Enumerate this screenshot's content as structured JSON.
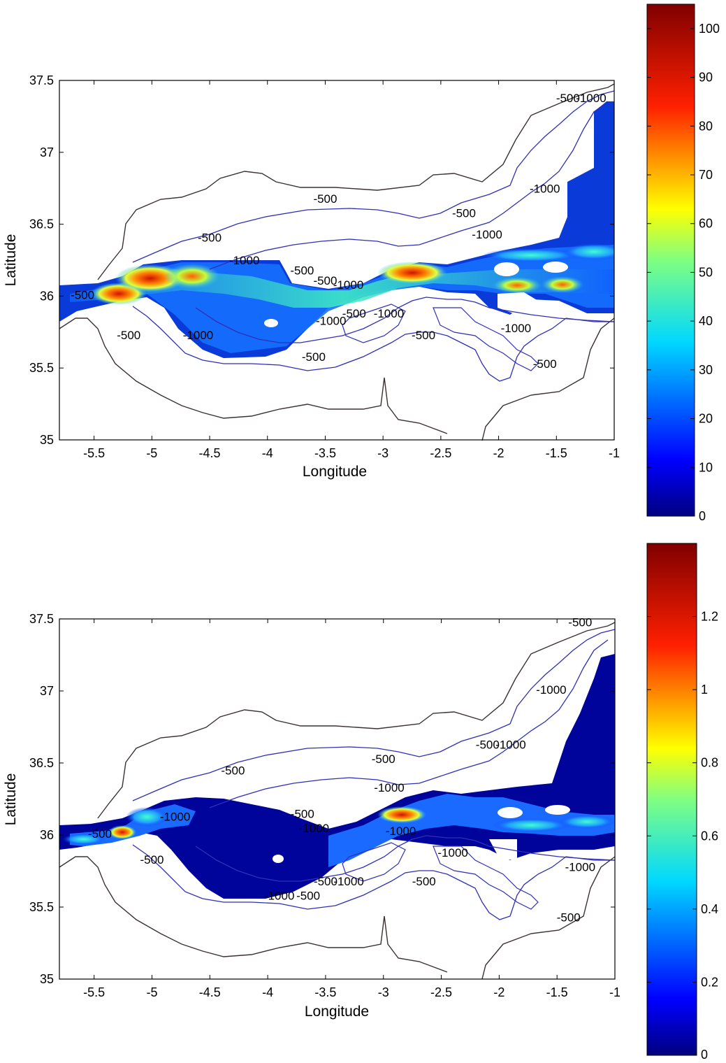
{
  "chart_data": [
    {
      "type": "heatmap",
      "xlabel": "Longitude",
      "ylabel": "Latitude",
      "xlim": [
        -5.8,
        -1
      ],
      "ylim": [
        35,
        37.5
      ],
      "xticks": [
        "-5.5",
        "-5",
        "-4.5",
        "-4",
        "-3.5",
        "-3",
        "-2.5",
        "-2",
        "-1.5",
        "-1"
      ],
      "yticks": [
        "35",
        "35.5",
        "36",
        "36.5",
        "37",
        "37.5"
      ],
      "colorbar": {
        "range": [
          0,
          105
        ],
        "ticks": [
          "0",
          "10",
          "20",
          "30",
          "40",
          "50",
          "60",
          "70",
          "80",
          "90",
          "100"
        ]
      },
      "contour_levels": [
        -500,
        -1000
      ],
      "contour_labels": [
        {
          "text": "-500",
          "x": -4.5,
          "y": 36.38
        },
        {
          "text": "-1000",
          "x": -4.2,
          "y": 36.22
        },
        {
          "text": "-500",
          "x": -3.7,
          "y": 36.15
        },
        {
          "text": "-500",
          "x": -3.5,
          "y": 36.08
        },
        {
          "text": "-1000",
          "x": -3.3,
          "y": 36.05
        },
        {
          "text": "-500",
          "x": -2.3,
          "y": 36.55
        },
        {
          "text": "-1000",
          "x": -2.1,
          "y": 36.4
        },
        {
          "text": "-500",
          "x": -3.5,
          "y": 36.65
        },
        {
          "text": "-1000",
          "x": -1.6,
          "y": 36.72
        },
        {
          "text": "-500",
          "x": -1.4,
          "y": 37.35
        },
        {
          "text": "-1000",
          "x": -1.2,
          "y": 37.35
        },
        {
          "text": "-500",
          "x": -5.6,
          "y": 35.98
        },
        {
          "text": "-500",
          "x": -5.2,
          "y": 35.7
        },
        {
          "text": "-1000",
          "x": -4.6,
          "y": 35.7
        },
        {
          "text": "-500",
          "x": -3.6,
          "y": 35.55
        },
        {
          "text": "-1000",
          "x": -3.45,
          "y": 35.8
        },
        {
          "text": "-500",
          "x": -3.25,
          "y": 35.85
        },
        {
          "text": "-1000",
          "x": -2.95,
          "y": 35.85
        },
        {
          "text": "-500",
          "x": -2.65,
          "y": 35.7
        },
        {
          "text": "-1000",
          "x": -1.85,
          "y": 35.75
        },
        {
          "text": "-500",
          "x": -1.6,
          "y": 35.5
        }
      ]
    },
    {
      "type": "heatmap",
      "xlabel": "Longitude",
      "ylabel": "Latitude",
      "xlim": [
        -5.8,
        -1
      ],
      "ylim": [
        35,
        37.5
      ],
      "xticks": [
        "-5.5",
        "-5",
        "-4.5",
        "-4",
        "-3.5",
        "-3",
        "-2.5",
        "-2",
        "-1.5",
        "-1"
      ],
      "yticks": [
        "35",
        "35.5",
        "36",
        "36.5",
        "37",
        "37.5"
      ],
      "colorbar": {
        "range": [
          0,
          1.4
        ],
        "ticks": [
          "0",
          "0.2",
          "0.4",
          "0.6",
          "0.8",
          "1",
          "1.2"
        ]
      },
      "contour_levels": [
        -500,
        -1000
      ],
      "contour_labels": [
        {
          "text": "-500",
          "x": -4.3,
          "y": 36.42
        },
        {
          "text": "-500",
          "x": -3.0,
          "y": 36.5
        },
        {
          "text": "-1000",
          "x": -2.95,
          "y": 36.3
        },
        {
          "text": "-1000",
          "x": -4.8,
          "y": 36.1
        },
        {
          "text": "-500",
          "x": -3.7,
          "y": 36.12
        },
        {
          "text": "-1000",
          "x": -3.6,
          "y": 36.02
        },
        {
          "text": "-1000",
          "x": -2.85,
          "y": 36.0
        },
        {
          "text": "-1000",
          "x": -2.4,
          "y": 35.85
        },
        {
          "text": "-500",
          "x": -2.1,
          "y": 36.6
        },
        {
          "text": "-1000",
          "x": -1.9,
          "y": 36.6
        },
        {
          "text": "-1000",
          "x": -1.55,
          "y": 36.98
        },
        {
          "text": "-500",
          "x": -1.3,
          "y": 37.45
        },
        {
          "text": "-500",
          "x": -5.45,
          "y": 35.98
        },
        {
          "text": "-500",
          "x": -5.0,
          "y": 35.8
        },
        {
          "text": "-1000",
          "x": -3.9,
          "y": 35.55
        },
        {
          "text": "-500",
          "x": -3.65,
          "y": 35.55
        },
        {
          "text": "-500",
          "x": -3.5,
          "y": 35.65
        },
        {
          "text": "-1000",
          "x": -3.3,
          "y": 35.65
        },
        {
          "text": "-500",
          "x": -2.65,
          "y": 35.65
        },
        {
          "text": "-500",
          "x": -1.4,
          "y": 35.4
        },
        {
          "text": "-1000",
          "x": -1.3,
          "y": 35.75
        }
      ]
    }
  ],
  "colors": {
    "coast": "#3a3230",
    "contour": "#2f2fb8",
    "frame": "#000000"
  }
}
